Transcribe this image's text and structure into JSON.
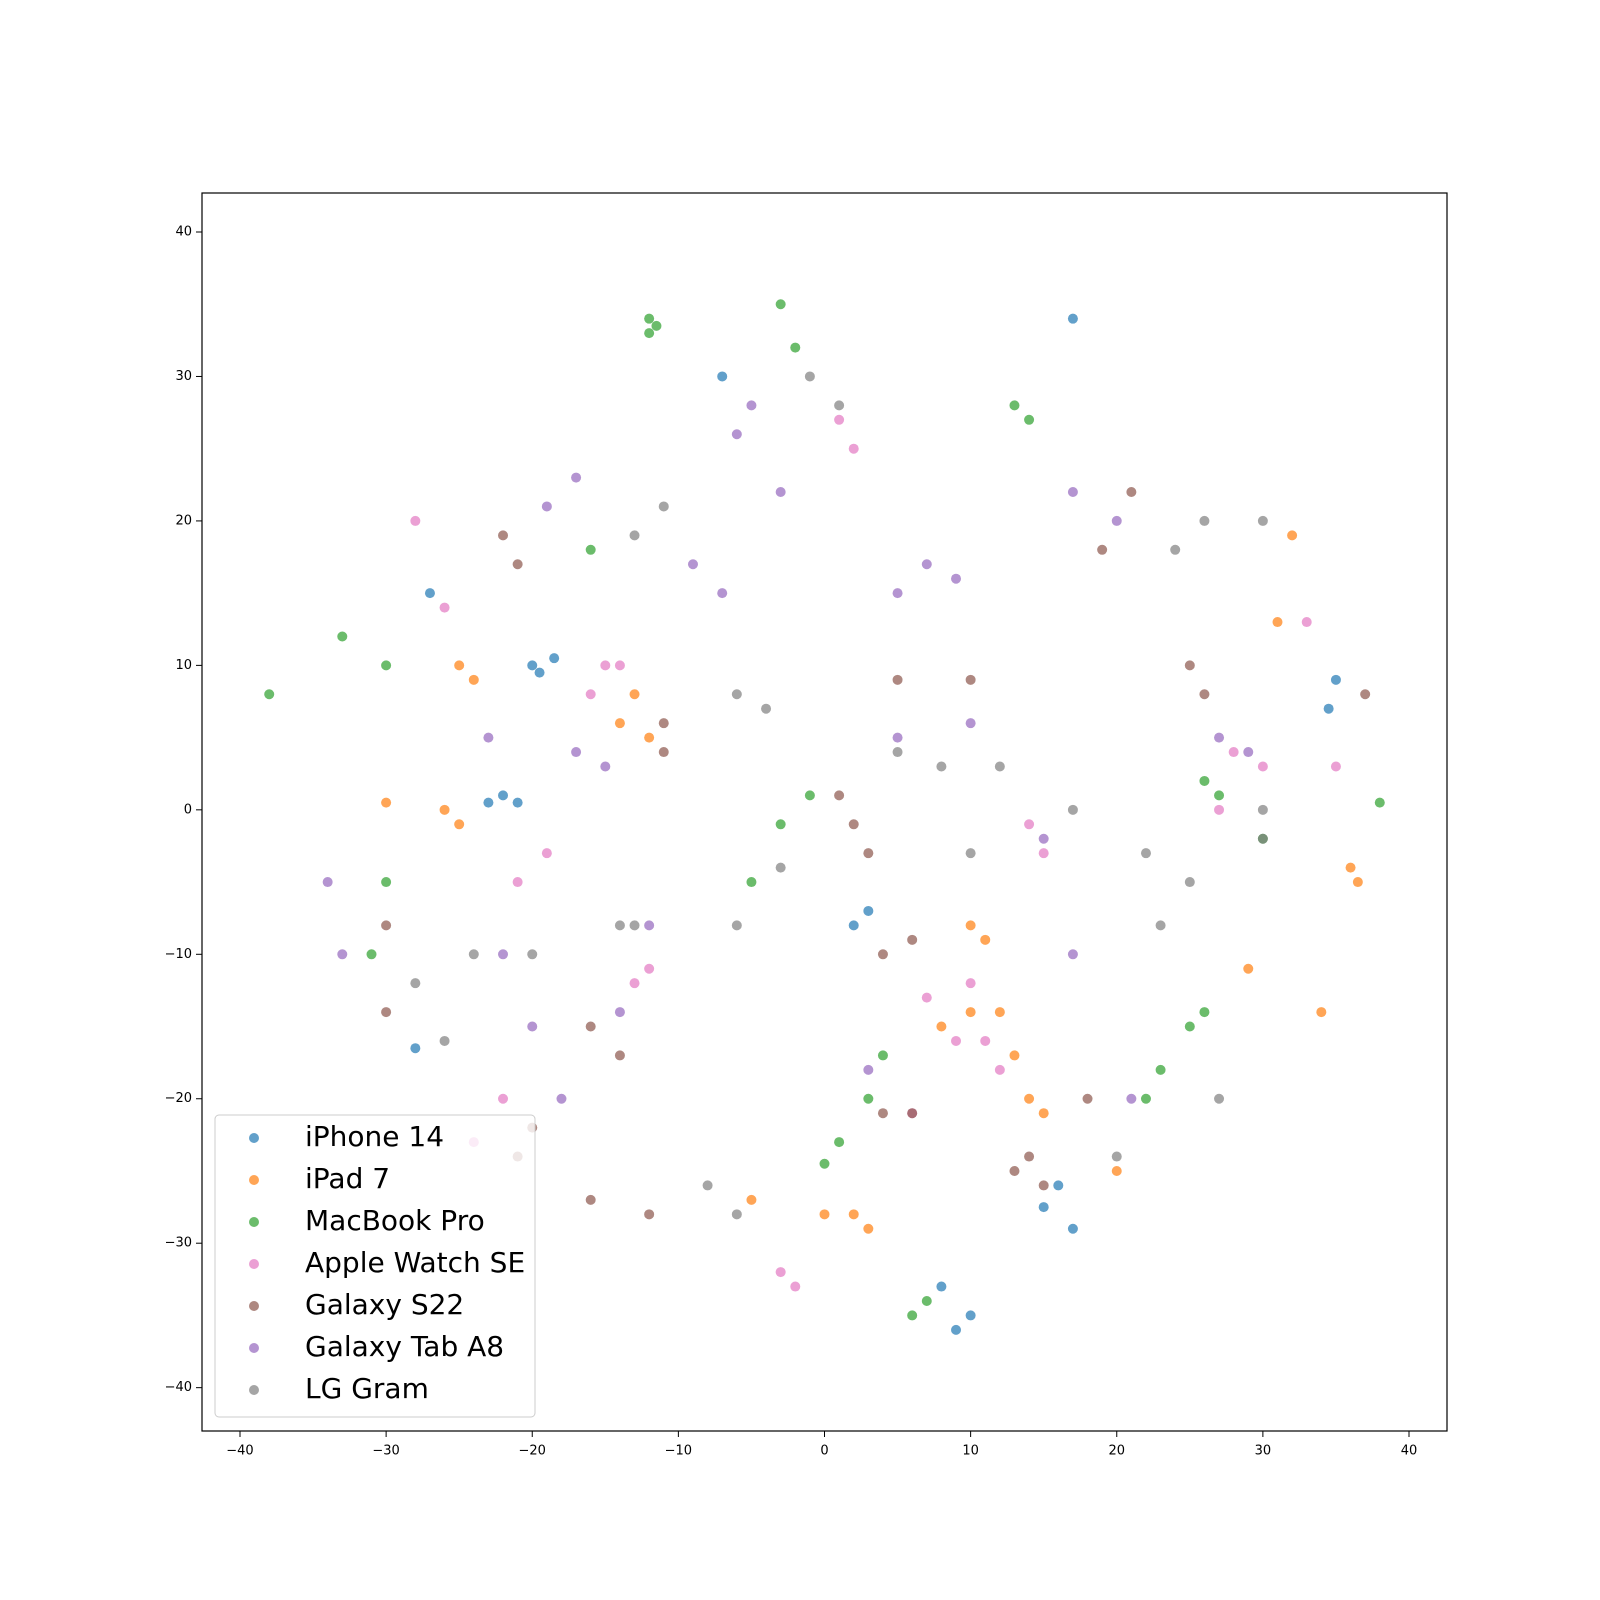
{
  "chart_data": {
    "type": "scatter",
    "xlim": [
      -42.6,
      42.6
    ],
    "ylim": [
      -43,
      42.7
    ],
    "xticks": [
      {
        "value": -40,
        "label": "−40"
      },
      {
        "value": -30,
        "label": "−30"
      },
      {
        "value": -20,
        "label": "−20"
      },
      {
        "value": -10,
        "label": "−10"
      },
      0,
      10,
      20,
      30,
      40
    ],
    "yticks": [
      {
        "value": -40,
        "label": "−40"
      },
      {
        "value": -30,
        "label": "−30"
      },
      {
        "value": -20,
        "label": "−20"
      },
      {
        "value": -10,
        "label": "−10"
      },
      0,
      10,
      20,
      30,
      40
    ],
    "grid": false,
    "legend": "lower left",
    "series": [
      {
        "name": "iPhone 14",
        "color": "#1f77b4",
        "x": [
          -20,
          -19.5,
          -18.5,
          -22,
          -21,
          -23,
          16,
          17,
          15,
          8,
          10,
          9,
          35,
          34.5,
          -28,
          -27,
          3,
          2,
          -7,
          17
        ],
        "y": [
          10,
          9.5,
          10.5,
          1,
          0.5,
          0.5,
          -26,
          -29,
          -27.5,
          -33,
          -35,
          -36,
          9,
          7,
          -16.5,
          15,
          -7,
          -8,
          30,
          34
        ]
      },
      {
        "name": "iPad 7",
        "color": "#ff7f0e",
        "x": [
          -26,
          -25,
          -13,
          -14,
          -12,
          12,
          13,
          14,
          15,
          10,
          8,
          2,
          3,
          0,
          32,
          31,
          36,
          36.5,
          -5,
          20,
          -30,
          10,
          11,
          29,
          34,
          -25,
          -24
        ],
        "y": [
          0,
          -1,
          8,
          6,
          5,
          -14,
          -17,
          -20,
          -21,
          -14,
          -15,
          -28,
          -29,
          -28,
          19,
          13,
          -4,
          -5,
          -27,
          -25,
          0.5,
          -8,
          -9,
          -11,
          -14,
          10,
          9
        ]
      },
      {
        "name": "MacBook Pro",
        "color": "#2ca02c",
        "x": [
          -12,
          -12,
          -11.5,
          4,
          3,
          1,
          0,
          -3,
          -2,
          13,
          14,
          26,
          25,
          23,
          22,
          -30,
          -31,
          38,
          -38,
          -33,
          -30,
          -16,
          -5,
          -3,
          -1,
          7,
          6,
          26,
          27,
          30
        ],
        "y": [
          33,
          34,
          33.5,
          -17,
          -20,
          -23,
          -24.5,
          35,
          32,
          28,
          27,
          -14,
          -15,
          -18,
          -20,
          -5,
          -10,
          0.5,
          8,
          12,
          10,
          18,
          -5,
          -1,
          1,
          -34,
          -35,
          2,
          1,
          -2
        ]
      },
      {
        "name": "Apple Watch SE",
        "color": "#e377c2",
        "x": [
          -15,
          -16,
          -14,
          10,
          11,
          12,
          7,
          28,
          30,
          15,
          14,
          -26,
          -28,
          -19,
          -21,
          -2,
          -3,
          6,
          9,
          35,
          33,
          -22,
          -24,
          2,
          1,
          27,
          -13,
          -12
        ],
        "y": [
          10,
          8,
          10,
          -12,
          -16,
          -18,
          -13,
          4,
          3,
          -3,
          -1,
          14,
          20,
          -3,
          -5,
          -33,
          -32,
          -21,
          -16,
          3,
          13,
          -20,
          -23,
          25,
          27,
          0,
          -12,
          -11
        ]
      },
      {
        "name": "Galaxy S22",
        "color": "#8c564b",
        "x": [
          -22,
          -21,
          -11,
          -11,
          1,
          2,
          3,
          6,
          4,
          13,
          15,
          18,
          14,
          -20,
          -21,
          -16,
          -12,
          -16,
          -14,
          -30,
          -30,
          21,
          19,
          26,
          25,
          6,
          4,
          37,
          10,
          5
        ],
        "y": [
          19,
          17,
          6,
          4,
          1,
          -1,
          -3,
          -9,
          -10,
          -25,
          -26,
          -20,
          -24,
          -22,
          -24,
          -27,
          -28,
          -15,
          -17,
          -8,
          -14,
          22,
          18,
          8,
          10,
          -21,
          -21,
          8,
          9,
          9
        ]
      },
      {
        "name": "Galaxy Tab A8",
        "color": "#9467bd",
        "x": [
          -19,
          -17,
          -9,
          -7,
          -5,
          -6,
          -3,
          9,
          7,
          5,
          17,
          20,
          27,
          29,
          -15,
          -17,
          -23,
          -18,
          -20,
          -22,
          -33,
          -34,
          -12,
          -14,
          3,
          17,
          21,
          15,
          10,
          5
        ],
        "y": [
          21,
          23,
          17,
          15,
          28,
          26,
          22,
          16,
          17,
          15,
          22,
          20,
          5,
          4,
          3,
          4,
          5,
          -20,
          -15,
          -10,
          -10,
          -5,
          -8,
          -14,
          -18,
          -10,
          -20,
          -2,
          6,
          5
        ]
      },
      {
        "name": "LG Gram",
        "color": "#7f7f7f",
        "x": [
          -4,
          -6,
          -1,
          1,
          -3,
          -6,
          22,
          25,
          23,
          30,
          30,
          -28,
          -26,
          -20,
          -24,
          -13,
          -14,
          12,
          8,
          5,
          26,
          24,
          30,
          27,
          20,
          -8,
          -6,
          -11,
          -13,
          10,
          17
        ],
        "y": [
          7,
          8,
          30,
          28,
          -4,
          -8,
          -3,
          -5,
          -8,
          -2,
          0,
          -12,
          -16,
          -10,
          -10,
          -8,
          -8,
          3,
          3,
          4,
          20,
          18,
          20,
          -20,
          -24,
          -26,
          -28,
          21,
          19,
          -3,
          0
        ]
      }
    ]
  }
}
